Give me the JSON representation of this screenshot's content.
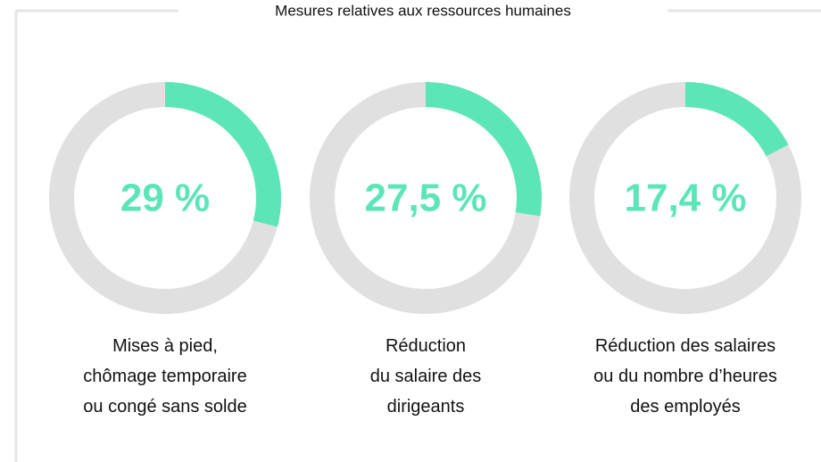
{
  "chart_data": {
    "type": "donut",
    "title": "Mesures relatives aux ressources humaines",
    "categories": [
      "Mises à pied,\nchômage temporaire\nou congé sans solde",
      "Réduction\ndu salaire des\ndirigeants",
      "Réduction des salaires\nou du nombre d’heures\ndes employés"
    ],
    "values": [
      29,
      27.5,
      17.4
    ],
    "value_labels": [
      "29 %",
      "27,5 %",
      "17,4 %"
    ],
    "color": "#5ce6b8",
    "track_color": "#e0e0e0"
  }
}
